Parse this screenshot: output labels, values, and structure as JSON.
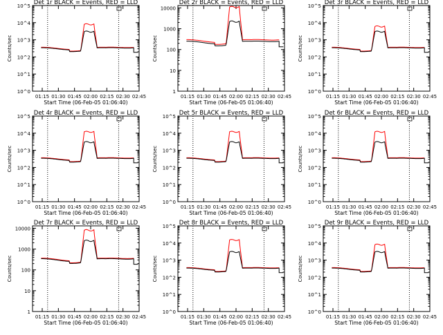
{
  "figure": {
    "time_axis_label": "Start Time (06-Feb-05 01:06:40)",
    "y_axis_label": "Counts/sec",
    "x_tick_labels": [
      "01:15",
      "01:30",
      "01:45",
      "02:00",
      "02:15",
      "02:30",
      "02:45"
    ],
    "colors": {
      "events": "#000000",
      "lld": "#ff0000"
    },
    "dotted_marker_times": [
      "01:20",
      "02:26"
    ]
  },
  "chart_data": [
    {
      "type": "line",
      "title": "Det 1r BLACK = Events, RED = LLD",
      "xlabel": "",
      "ylabel": "Counts/sec",
      "xlim": [
        "01:06",
        "02:45"
      ],
      "ylim": [
        1,
        100000
      ],
      "yscale": "log",
      "ytick_labels": [
        "10^5",
        "10^4",
        "10^3",
        "10^2",
        "10^1",
        "10^0"
      ],
      "events_base": 300,
      "events_peak": 3000,
      "lld_base": 320,
      "lld_peak": 8000
    },
    {
      "type": "line",
      "title": "Det 2r BLACK = Events, RED = LLD",
      "xlabel": "",
      "ylabel": "Counts/sec",
      "xlim": [
        "01:06",
        "02:45"
      ],
      "ylim": [
        1,
        13000
      ],
      "yscale": "log",
      "ytick_labels": [
        "10000",
        "1000",
        "100",
        "10",
        "1"
      ],
      "events_base": 220,
      "events_peak": 2200,
      "lld_base": 260,
      "lld_peak": 11000
    },
    {
      "type": "line",
      "title": "Det 3r BLACK = Events, RED = LLD",
      "xlabel": "",
      "ylabel": "Counts/sec",
      "xlim": [
        "01:06",
        "02:45"
      ],
      "ylim": [
        1,
        100000
      ],
      "yscale": "log",
      "ytick_labels": [
        "10^5",
        "10^4",
        "10^3",
        "10^2",
        "10^1",
        "10^0"
      ],
      "events_base": 300,
      "events_peak": 3000,
      "lld_base": 320,
      "lld_peak": 6000
    },
    {
      "type": "line",
      "title": "Det 4r BLACK = Events, RED = LLD",
      "xlabel": "",
      "ylabel": "Counts/sec",
      "xlim": [
        "01:06",
        "02:45"
      ],
      "ylim": [
        1,
        100000
      ],
      "yscale": "log",
      "ytick_labels": [
        "10^5",
        "10^4",
        "10^3",
        "10^2",
        "10^1",
        "10^0"
      ],
      "events_base": 300,
      "events_peak": 3000,
      "lld_base": 320,
      "lld_peak": 12000
    },
    {
      "type": "line",
      "title": "Det 5r BLACK = Events, RED = LLD",
      "xlabel": "",
      "ylabel": "Counts/sec",
      "xlim": [
        "01:06",
        "02:45"
      ],
      "ylim": [
        1,
        100000
      ],
      "yscale": "log",
      "ytick_labels": [
        "10^5",
        "10^4",
        "10^3",
        "10^2",
        "10^1",
        "10^0"
      ],
      "events_base": 300,
      "events_peak": 3000,
      "lld_base": 320,
      "lld_peak": 12000
    },
    {
      "type": "line",
      "title": "Det 6r BLACK = Events, RED = LLD",
      "xlabel": "",
      "ylabel": "Counts/sec",
      "xlim": [
        "01:06",
        "02:45"
      ],
      "ylim": [
        1,
        100000
      ],
      "yscale": "log",
      "ytick_labels": [
        "10^5",
        "10^4",
        "10^3",
        "10^2",
        "10^1",
        "10^0"
      ],
      "events_base": 300,
      "events_peak": 3000,
      "lld_base": 320,
      "lld_peak": 12000
    },
    {
      "type": "line",
      "title": "Det 7r BLACK = Events, RED = LLD",
      "xlabel": "Start Time (06-Feb-05 01:06:40)",
      "ylabel": "Counts/sec",
      "xlim": [
        "01:06",
        "02:45"
      ],
      "ylim": [
        1,
        13000
      ],
      "yscale": "log",
      "ytick_labels": [
        "10000",
        "1000",
        "100",
        "10",
        "1"
      ],
      "events_base": 300,
      "events_peak": 2500,
      "lld_base": 320,
      "lld_peak": 8000
    },
    {
      "type": "line",
      "title": "Det 8r BLACK = Events, RED = LLD",
      "xlabel": "Start Time (06-Feb-05 01:06:40)",
      "ylabel": "Counts/sec",
      "xlim": [
        "01:06",
        "02:45"
      ],
      "ylim": [
        1,
        100000
      ],
      "yscale": "log",
      "ytick_labels": [
        "10^5",
        "10^4",
        "10^3",
        "10^2",
        "10^1",
        "10^0"
      ],
      "events_base": 300,
      "events_peak": 3000,
      "lld_base": 320,
      "lld_peak": 15000
    },
    {
      "type": "line",
      "title": "Det 9r BLACK = Events, RED = LLD",
      "xlabel": "Start Time (06-Feb-05 01:06:40)",
      "ylabel": "Counts/sec",
      "xlim": [
        "01:06",
        "02:45"
      ],
      "ylim": [
        1,
        100000
      ],
      "yscale": "log",
      "ytick_labels": [
        "10^5",
        "10^4",
        "10^3",
        "10^2",
        "10^1",
        "10^0"
      ],
      "events_base": 300,
      "events_peak": 3000,
      "lld_base": 320,
      "lld_peak": 8000
    }
  ]
}
